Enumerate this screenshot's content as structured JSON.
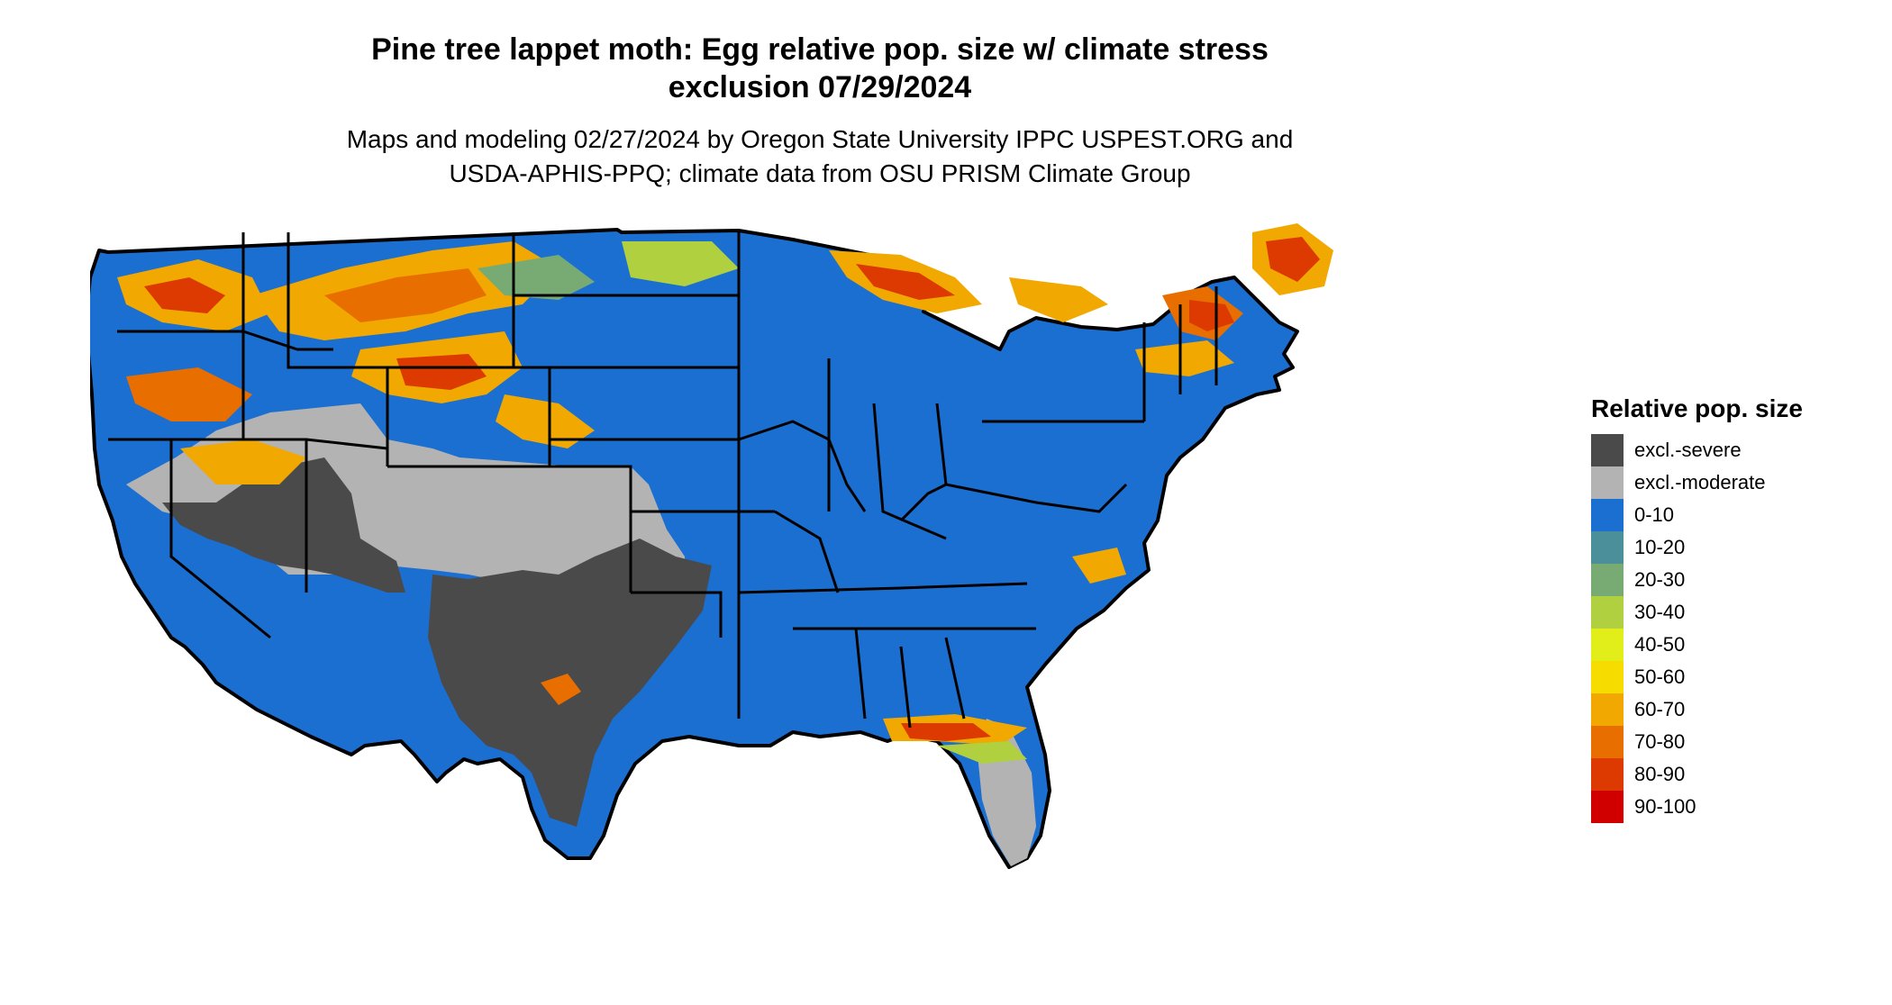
{
  "title_line1": "Pine tree lappet moth: Egg relative pop. size w/ climate stress",
  "title_line2": "exclusion 07/29/2024",
  "subtitle_line1": "Maps and modeling 02/27/2024 by Oregon State University IPPC USPEST.ORG and",
  "subtitle_line2": "USDA-APHIS-PPQ; climate data from OSU PRISM Climate Group",
  "legend": {
    "title": "Relative pop. size",
    "items": [
      {
        "label": "excl.-severe",
        "color": "#4a4a4a"
      },
      {
        "label": "excl.-moderate",
        "color": "#b3b3b3"
      },
      {
        "label": "0-10",
        "color": "#1b6fd1"
      },
      {
        "label": "10-20",
        "color": "#4a8f9a"
      },
      {
        "label": "20-30",
        "color": "#78ab73"
      },
      {
        "label": "30-40",
        "color": "#b0d040"
      },
      {
        "label": "40-50",
        "color": "#e2ee1a"
      },
      {
        "label": "50-60",
        "color": "#f7dc00"
      },
      {
        "label": "60-70",
        "color": "#f1a800"
      },
      {
        "label": "70-80",
        "color": "#e86e00"
      },
      {
        "label": "80-90",
        "color": "#dc3a00"
      },
      {
        "label": "90-100",
        "color": "#d00000"
      }
    ]
  }
}
